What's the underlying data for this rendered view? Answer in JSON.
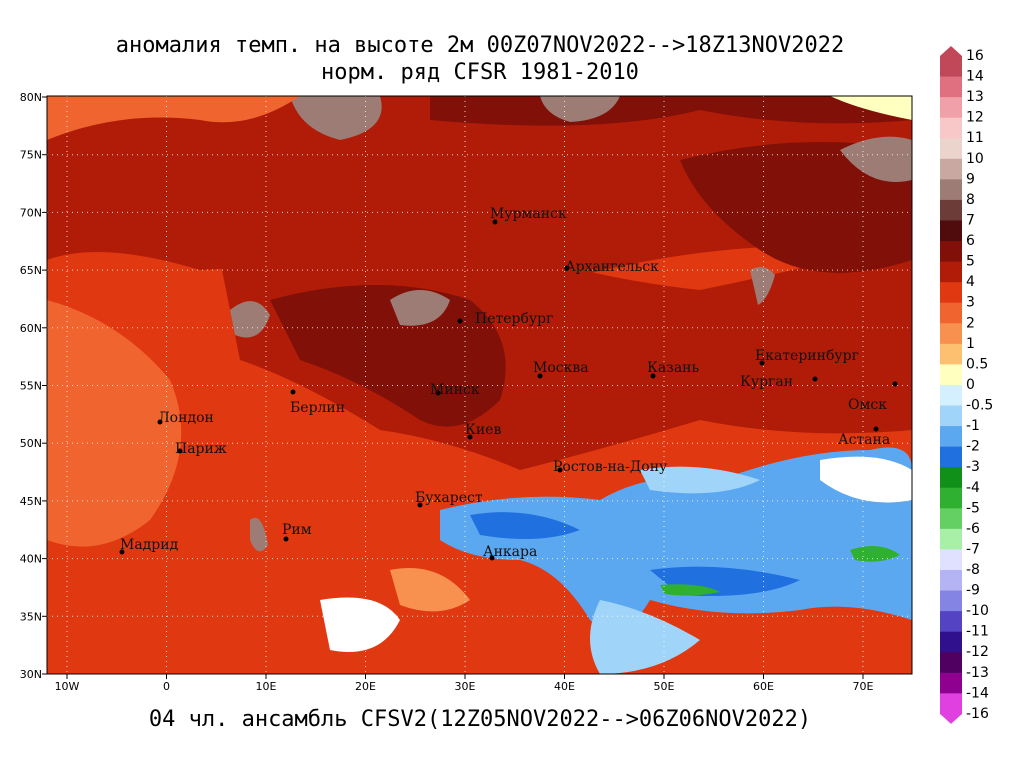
{
  "map": {
    "title": [
      "аномалия темп. на высоте 2м 00Z07NOV2022-->18Z13NOV2022",
      "норм. ряд CFSR 1981-2010"
    ],
    "footer": "04 чл. ансамбль CFSV2(12Z05NOV2022-->06Z06NOV2022)",
    "lat_labels": [
      "80N",
      "75N",
      "70N",
      "65N",
      "60N",
      "55N",
      "50N",
      "45N",
      "40N",
      "35N",
      "30N"
    ],
    "lon_labels": [
      "10W",
      "0",
      "10E",
      "20E",
      "30E",
      "40E",
      "50E",
      "60E",
      "70E"
    ],
    "cities": [
      "Мурманск",
      "Архангельск",
      "Петербург",
      "Москва",
      "Казань",
      "Екатеринбург",
      "Курган",
      "Омск",
      "Астана",
      "Минск",
      "Берлин",
      "Лондон",
      "Париж",
      "Киев",
      "Ростов-на-Дону",
      "Бухарест",
      "Рим",
      "Мадрид",
      "Анкара"
    ],
    "colorbar": {
      "levels": [
        16,
        14,
        13,
        12,
        11,
        10,
        9,
        8,
        7,
        6,
        5,
        4,
        3,
        2,
        1,
        0.5,
        0,
        -0.5,
        -1,
        -2,
        -3,
        -4,
        -5,
        -6,
        -7,
        -8,
        -9,
        -10,
        -11,
        -12,
        -13,
        -14,
        -16
      ],
      "colors": [
        "#c04858",
        "#e07080",
        "#f0a0a8",
        "#f8c8c8",
        "#ead4cc",
        "#c8a8a0",
        "#9c7c74",
        "#6c3c38",
        "#500c0c",
        "#801008",
        "#b01c08",
        "#e03810",
        "#f06430",
        "#f89050",
        "#fcc070",
        "#ffffc0",
        "#d4f0ff",
        "#a0d4f8",
        "#5ca8f0",
        "#2070e0",
        "#109018",
        "#30b030",
        "#64d064",
        "#a8f0a8",
        "#e0e0ff",
        "#b4b4f4",
        "#8484e4",
        "#5444c4",
        "#30108c",
        "#500060",
        "#900090",
        "#e040e0"
      ]
    }
  }
}
